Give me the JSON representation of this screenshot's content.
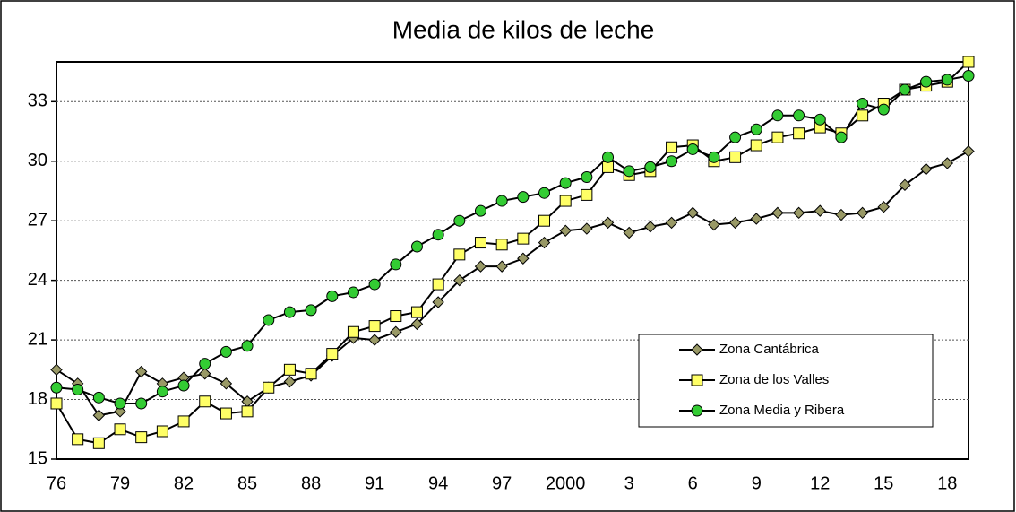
{
  "chart_data": {
    "type": "line",
    "title": "Media de kilos de leche",
    "categories": [
      "76",
      null,
      null,
      "79",
      null,
      null,
      "82",
      null,
      null,
      "85",
      null,
      null,
      "88",
      null,
      null,
      "91",
      null,
      null,
      "94",
      null,
      null,
      "97",
      null,
      null,
      "2000",
      null,
      null,
      "3",
      null,
      null,
      "6",
      null,
      null,
      "9",
      null,
      null,
      "12",
      null,
      null,
      "15",
      null,
      null,
      "18",
      null
    ],
    "ylim": [
      15,
      35
    ],
    "yticks": [
      15,
      18,
      21,
      24,
      27,
      30,
      33
    ],
    "grid": true,
    "legend": "lower right",
    "series": [
      {
        "name": "Zona Cantábrica",
        "color": "#999966",
        "marker": "diamond",
        "values": [
          19.5,
          18.8,
          17.2,
          17.4,
          19.4,
          18.8,
          19.1,
          19.3,
          18.8,
          17.9,
          18.6,
          18.9,
          19.2,
          20.2,
          21.1,
          21.0,
          21.4,
          21.8,
          22.9,
          24.0,
          24.7,
          24.7,
          25.1,
          25.9,
          26.5,
          26.6,
          26.9,
          26.4,
          26.7,
          26.9,
          27.4,
          26.8,
          26.9,
          27.1,
          27.4,
          27.4,
          27.5,
          27.3,
          27.4,
          27.7,
          28.8,
          29.6,
          29.9,
          30.5
        ]
      },
      {
        "name": "Zona de los Valles",
        "color": "#ffff66",
        "marker": "square",
        "values": [
          17.8,
          16.0,
          15.8,
          16.5,
          16.1,
          16.4,
          16.9,
          17.9,
          17.3,
          17.4,
          18.6,
          19.5,
          19.3,
          20.3,
          21.4,
          21.7,
          22.2,
          22.4,
          23.8,
          25.3,
          25.9,
          25.8,
          26.1,
          27.0,
          28.0,
          28.3,
          29.7,
          29.3,
          29.5,
          30.7,
          30.8,
          30.0,
          30.2,
          30.8,
          31.2,
          31.4,
          31.7,
          31.4,
          32.3,
          32.9,
          33.6,
          33.8,
          34.0,
          35.0
        ]
      },
      {
        "name": "Zona Media y Ribera",
        "color": "#33cc33",
        "marker": "circle",
        "values": [
          18.6,
          18.5,
          18.1,
          17.8,
          17.8,
          18.4,
          18.7,
          19.8,
          20.4,
          20.7,
          22.0,
          22.4,
          22.5,
          23.2,
          23.4,
          23.8,
          24.8,
          25.7,
          26.3,
          27.0,
          27.5,
          28.0,
          28.2,
          28.4,
          28.9,
          29.2,
          30.2,
          29.5,
          29.7,
          30.0,
          30.6,
          30.2,
          31.2,
          31.6,
          32.3,
          32.3,
          32.1,
          31.2,
          32.9,
          32.6,
          33.6,
          34.0,
          34.1,
          34.3
        ]
      }
    ]
  }
}
